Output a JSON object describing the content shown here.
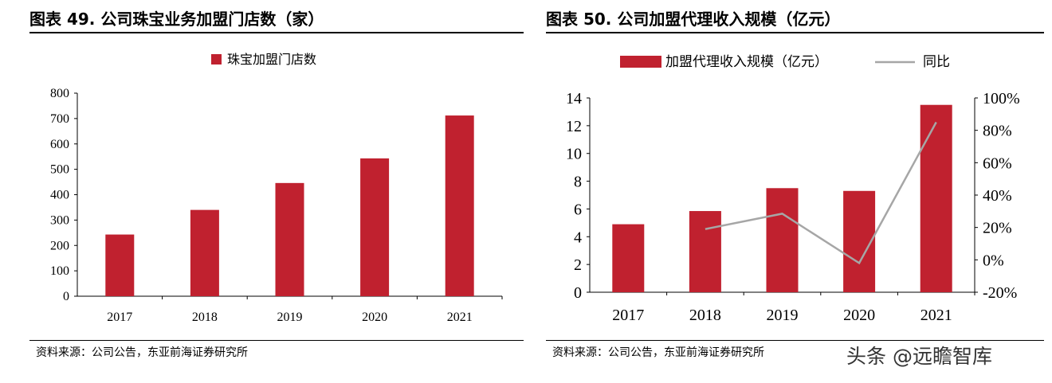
{
  "charts": [
    {
      "title": "图表 49. 公司珠宝业务加盟门店数（家）",
      "source": "资料来源：公司公告，东亚前海证券研究所"
    },
    {
      "title": "图表 50. 公司加盟代理收入规模（亿元）",
      "source": "资料来源：公司公告，东亚前海证券研究所"
    }
  ],
  "watermark": "头条 @远瞻智库",
  "colors": {
    "bar": "#C0212F",
    "line": "#A6A6A6",
    "axis": "#000000"
  },
  "chart_data": [
    {
      "type": "bar",
      "title": "图表 49. 公司珠宝业务加盟门店数（家）",
      "categories": [
        "2017",
        "2018",
        "2019",
        "2020",
        "2021"
      ],
      "series": [
        {
          "name": "珠宝加盟门店数",
          "values": [
            243,
            340,
            446,
            543,
            712
          ]
        }
      ],
      "ylim": [
        0,
        800
      ],
      "yticks": [
        "0",
        "100",
        "200",
        "300",
        "400",
        "500",
        "600",
        "700",
        "800"
      ],
      "legend": "top-center",
      "grid": false
    },
    {
      "type": "bar",
      "title": "图表 50. 公司加盟代理收入规模（亿元）",
      "categories": [
        "2017",
        "2018",
        "2019",
        "2020",
        "2021"
      ],
      "series": [
        {
          "name": "加盟代理收入规模（亿元）",
          "type": "bar",
          "axis": "left",
          "values": [
            4.9,
            5.85,
            7.5,
            7.3,
            13.5
          ]
        },
        {
          "name": "同比",
          "type": "line",
          "axis": "right",
          "values": [
            null,
            0.19,
            0.285,
            -0.02,
            0.85
          ]
        }
      ],
      "ylim": [
        0,
        14
      ],
      "yticks": [
        "0",
        "2",
        "4",
        "6",
        "8",
        "10",
        "12",
        "14"
      ],
      "y2lim": [
        -0.2,
        1.0
      ],
      "y2ticks": [
        "-20%",
        "0%",
        "20%",
        "40%",
        "60%",
        "80%",
        "100%"
      ],
      "legend": "top-center",
      "grid": false
    }
  ]
}
